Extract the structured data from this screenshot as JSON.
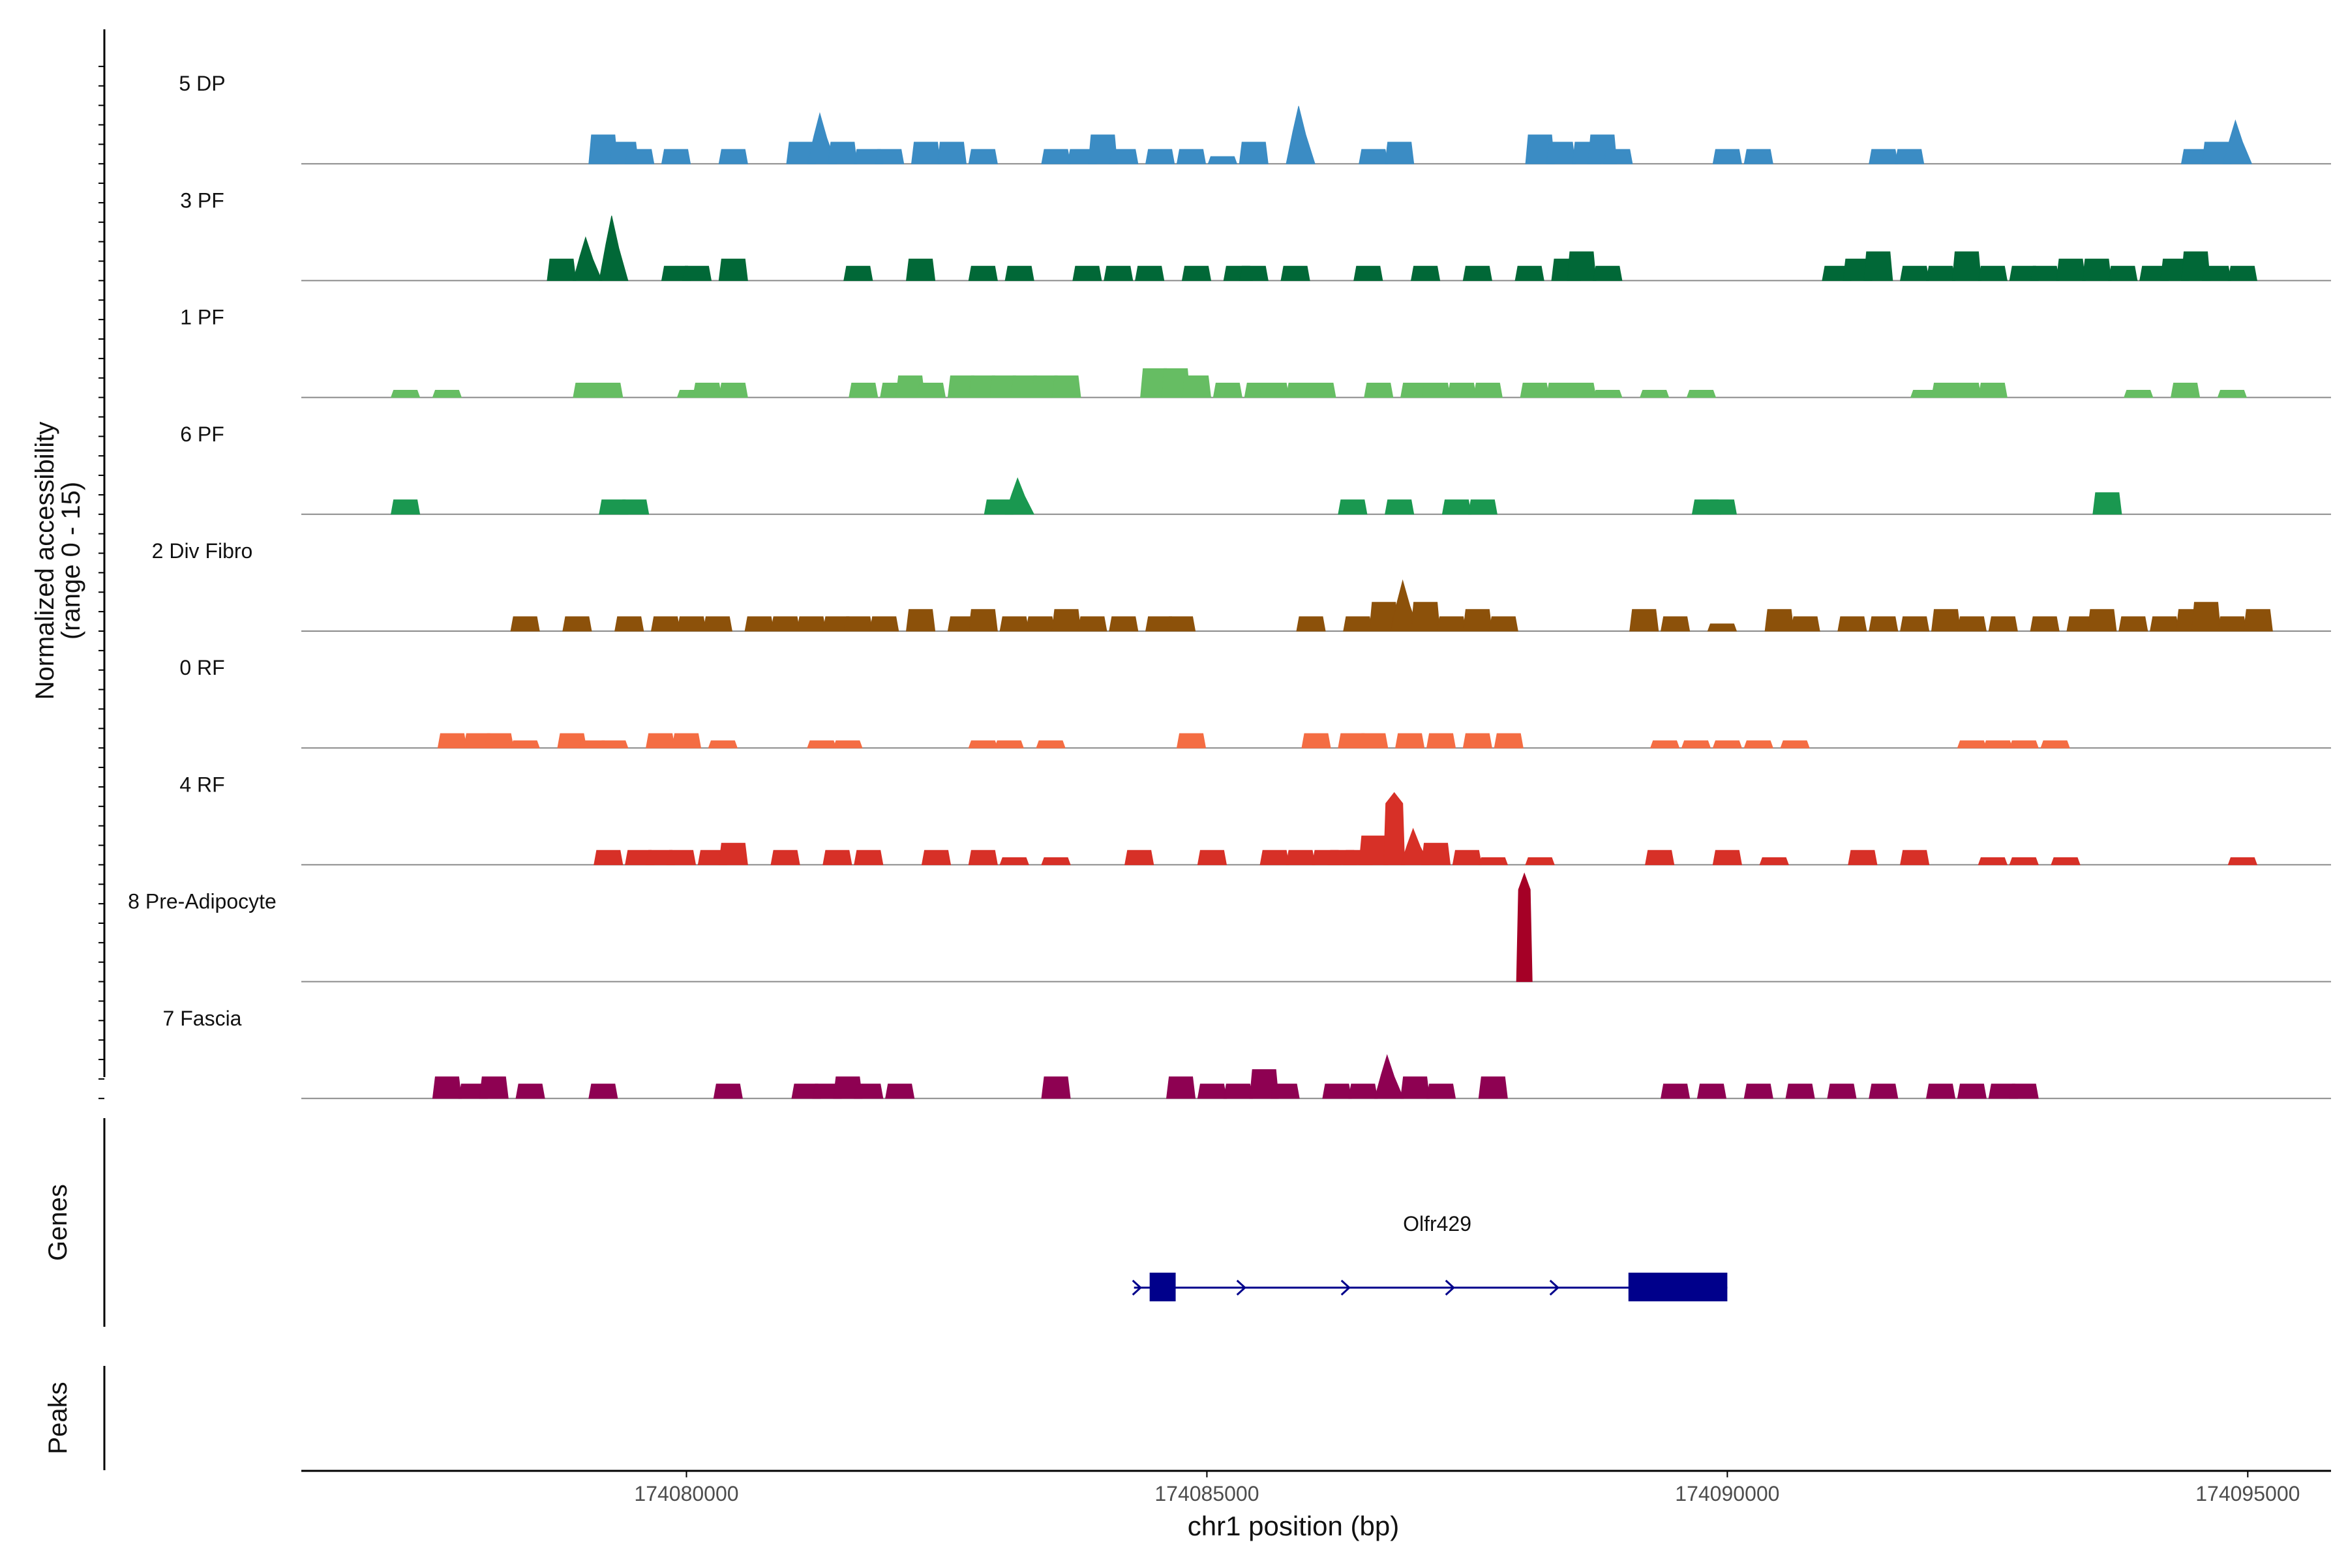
{
  "chart_data": {
    "type": "coverage",
    "title": "",
    "ylabel_lines": [
      "Normalized accessibility",
      "(range 0 - 15)"
    ],
    "ylim": [
      0,
      15
    ],
    "xlabel": "chr1 position (bp)",
    "xlim": [
      174076300,
      174095800
    ],
    "x_ticks": [
      174080000,
      174085000,
      174090000,
      174095000
    ],
    "x_tick_labels": [
      "174080000",
      "174085000",
      "174090000",
      "174095000"
    ],
    "tracks": [
      {
        "name": "5 DP",
        "color": "#3B8CC4",
        "peaks": [
          [
            174079200,
            4
          ],
          [
            174079400,
            3
          ],
          [
            174079550,
            2
          ],
          [
            174079900,
            2
          ],
          [
            174080450,
            2
          ],
          [
            174081100,
            3
          ],
          [
            174081300,
            7
          ],
          [
            174081500,
            3
          ],
          [
            174081750,
            2
          ],
          [
            174081950,
            2
          ],
          [
            174082300,
            3
          ],
          [
            174082550,
            3
          ],
          [
            174082850,
            2
          ],
          [
            174083550,
            2
          ],
          [
            174083800,
            2
          ],
          [
            174084000,
            4
          ],
          [
            174084200,
            2
          ],
          [
            174084550,
            2
          ],
          [
            174084850,
            2
          ],
          [
            174085150,
            1
          ],
          [
            174085450,
            3
          ],
          [
            174085900,
            8
          ],
          [
            174086600,
            2
          ],
          [
            174086850,
            3
          ],
          [
            174088200,
            4
          ],
          [
            174088400,
            3
          ],
          [
            174088650,
            3
          ],
          [
            174088800,
            4
          ],
          [
            174088950,
            2
          ],
          [
            174090000,
            2
          ],
          [
            174090300,
            2
          ],
          [
            174091500,
            2
          ],
          [
            174091750,
            2
          ],
          [
            174094500,
            2
          ],
          [
            174094700,
            3
          ],
          [
            174094900,
            6
          ]
        ]
      },
      {
        "name": "3 PF",
        "color": "#016837",
        "peaks": [
          [
            174078800,
            3
          ],
          [
            174079050,
            6
          ],
          [
            174079300,
            9
          ],
          [
            174079900,
            2
          ],
          [
            174080100,
            2
          ],
          [
            174080450,
            3
          ],
          [
            174081650,
            2
          ],
          [
            174082250,
            3
          ],
          [
            174082850,
            2
          ],
          [
            174083200,
            2
          ],
          [
            174083850,
            2
          ],
          [
            174084150,
            2
          ],
          [
            174084450,
            2
          ],
          [
            174084900,
            2
          ],
          [
            174085300,
            2
          ],
          [
            174085450,
            2
          ],
          [
            174085850,
            2
          ],
          [
            174086550,
            2
          ],
          [
            174087100,
            2
          ],
          [
            174087600,
            2
          ],
          [
            174088100,
            2
          ],
          [
            174088450,
            3
          ],
          [
            174088600,
            4
          ],
          [
            174088850,
            2
          ],
          [
            174091050,
            2
          ],
          [
            174091250,
            3
          ],
          [
            174091450,
            4
          ],
          [
            174091800,
            2
          ],
          [
            174092050,
            2
          ],
          [
            174092300,
            4
          ],
          [
            174092550,
            2
          ],
          [
            174092850,
            2
          ],
          [
            174093050,
            2
          ],
          [
            174093300,
            3
          ],
          [
            174093550,
            3
          ],
          [
            174093800,
            2
          ],
          [
            174094100,
            2
          ],
          [
            174094300,
            3
          ],
          [
            174094500,
            4
          ],
          [
            174094700,
            2
          ],
          [
            174094950,
            2
          ]
        ]
      },
      {
        "name": "1 PF",
        "color": "#66BD63",
        "peaks": [
          [
            174077300,
            1
          ],
          [
            174077700,
            1
          ],
          [
            174079050,
            2
          ],
          [
            174079250,
            2
          ],
          [
            174080050,
            1
          ],
          [
            174080200,
            2
          ],
          [
            174080450,
            2
          ],
          [
            174081700,
            2
          ],
          [
            174082000,
            2
          ],
          [
            174082150,
            3
          ],
          [
            174082350,
            2
          ],
          [
            174082650,
            3
          ],
          [
            174082850,
            3
          ],
          [
            174083050,
            3
          ],
          [
            174083250,
            3
          ],
          [
            174083450,
            3
          ],
          [
            174083650,
            3
          ],
          [
            174084500,
            4
          ],
          [
            174084700,
            4
          ],
          [
            174084900,
            3
          ],
          [
            174085200,
            2
          ],
          [
            174085500,
            2
          ],
          [
            174085650,
            2
          ],
          [
            174085900,
            2
          ],
          [
            174086100,
            2
          ],
          [
            174086650,
            2
          ],
          [
            174087000,
            2
          ],
          [
            174087200,
            2
          ],
          [
            174087450,
            2
          ],
          [
            174087700,
            2
          ],
          [
            174088150,
            2
          ],
          [
            174088400,
            2
          ],
          [
            174088600,
            2
          ],
          [
            174088850,
            1
          ],
          [
            174089300,
            1
          ],
          [
            174089750,
            1
          ],
          [
            174091900,
            1
          ],
          [
            174092100,
            2
          ],
          [
            174092300,
            2
          ],
          [
            174092550,
            2
          ],
          [
            174093950,
            1
          ],
          [
            174094400,
            2
          ],
          [
            174094850,
            1
          ]
        ]
      },
      {
        "name": "6 PF",
        "color": "#1A9850",
        "peaks": [
          [
            174077300,
            2
          ],
          [
            174079300,
            2
          ],
          [
            174079500,
            2
          ],
          [
            174083000,
            2
          ],
          [
            174083200,
            5
          ],
          [
            174086400,
            2
          ],
          [
            174086850,
            2
          ],
          [
            174087400,
            2
          ],
          [
            174087650,
            2
          ],
          [
            174089800,
            2
          ],
          [
            174089950,
            2
          ],
          [
            174093650,
            3
          ]
        ]
      },
      {
        "name": "2 Div Fibro",
        "color": "#8C510A",
        "peaks": [
          [
            174078450,
            2
          ],
          [
            174078950,
            2
          ],
          [
            174079450,
            2
          ],
          [
            174079800,
            2
          ],
          [
            174080050,
            2
          ],
          [
            174080300,
            2
          ],
          [
            174080700,
            2
          ],
          [
            174080950,
            2
          ],
          [
            174081200,
            2
          ],
          [
            174081450,
            2
          ],
          [
            174081650,
            2
          ],
          [
            174081900,
            2
          ],
          [
            174082250,
            3
          ],
          [
            174082650,
            2
          ],
          [
            174082850,
            3
          ],
          [
            174083150,
            2
          ],
          [
            174083400,
            2
          ],
          [
            174083650,
            3
          ],
          [
            174083900,
            2
          ],
          [
            174084200,
            2
          ],
          [
            174084550,
            2
          ],
          [
            174084750,
            2
          ],
          [
            174086000,
            2
          ],
          [
            174086450,
            2
          ],
          [
            174086700,
            4
          ],
          [
            174086900,
            7
          ],
          [
            174087100,
            4
          ],
          [
            174087350,
            2
          ],
          [
            174087600,
            3
          ],
          [
            174087850,
            2
          ],
          [
            174089200,
            3
          ],
          [
            174089500,
            2
          ],
          [
            174089950,
            1
          ],
          [
            174090500,
            3
          ],
          [
            174090750,
            2
          ],
          [
            174091200,
            2
          ],
          [
            174091500,
            2
          ],
          [
            174091800,
            2
          ],
          [
            174092100,
            3
          ],
          [
            174092350,
            2
          ],
          [
            174092650,
            2
          ],
          [
            174093050,
            2
          ],
          [
            174093400,
            2
          ],
          [
            174093600,
            3
          ],
          [
            174093900,
            2
          ],
          [
            174094200,
            2
          ],
          [
            174094450,
            3
          ],
          [
            174094600,
            4
          ],
          [
            174094850,
            2
          ],
          [
            174095100,
            3
          ]
        ]
      },
      {
        "name": "0 RF",
        "color": "#F46D43",
        "peaks": [
          [
            174077750,
            2
          ],
          [
            174078000,
            2
          ],
          [
            174078200,
            2
          ],
          [
            174078450,
            1
          ],
          [
            174078900,
            2
          ],
          [
            174079100,
            1
          ],
          [
            174079300,
            1
          ],
          [
            174079750,
            2
          ],
          [
            174080000,
            2
          ],
          [
            174080350,
            1
          ],
          [
            174081300,
            1
          ],
          [
            174081550,
            1
          ],
          [
            174082850,
            1
          ],
          [
            174083100,
            1
          ],
          [
            174083500,
            1
          ],
          [
            174084850,
            2
          ],
          [
            174086050,
            2
          ],
          [
            174086400,
            2
          ],
          [
            174086600,
            2
          ],
          [
            174086950,
            2
          ],
          [
            174087250,
            2
          ],
          [
            174087600,
            2
          ],
          [
            174087900,
            2
          ],
          [
            174089400,
            1
          ],
          [
            174089700,
            1
          ],
          [
            174090000,
            1
          ],
          [
            174090300,
            1
          ],
          [
            174090650,
            1
          ],
          [
            174092350,
            1
          ],
          [
            174092600,
            1
          ],
          [
            174092850,
            1
          ],
          [
            174093150,
            1
          ]
        ]
      },
      {
        "name": "4 RF",
        "color": "#D73027",
        "peaks": [
          [
            174079250,
            2
          ],
          [
            174079550,
            2
          ],
          [
            174079750,
            2
          ],
          [
            174079950,
            2
          ],
          [
            174080250,
            2
          ],
          [
            174080450,
            3
          ],
          [
            174080950,
            2
          ],
          [
            174081450,
            2
          ],
          [
            174081750,
            2
          ],
          [
            174082400,
            2
          ],
          [
            174082850,
            2
          ],
          [
            174083150,
            1
          ],
          [
            174083550,
            1
          ],
          [
            174084350,
            2
          ],
          [
            174085050,
            2
          ],
          [
            174085650,
            2
          ],
          [
            174085900,
            2
          ],
          [
            174086150,
            2
          ],
          [
            174086300,
            2
          ],
          [
            174086450,
            2
          ],
          [
            174086600,
            4
          ],
          [
            174086800,
            10
          ],
          [
            174087000,
            5
          ],
          [
            174087200,
            3
          ],
          [
            174087500,
            2
          ],
          [
            174087750,
            1
          ],
          [
            174088200,
            1
          ],
          [
            174089350,
            2
          ],
          [
            174090000,
            2
          ],
          [
            174090450,
            1
          ],
          [
            174091300,
            2
          ],
          [
            174091800,
            2
          ],
          [
            174092550,
            1
          ],
          [
            174092850,
            1
          ],
          [
            174093250,
            1
          ],
          [
            174094950,
            1
          ]
        ]
      },
      {
        "name": "8 Pre-Adipocyte",
        "color": "#A50026",
        "peaks": [
          [
            174088050,
            15
          ]
        ]
      },
      {
        "name": "7 Fascia",
        "color": "#8E0152",
        "peaks": [
          [
            174077700,
            3
          ],
          [
            174077950,
            2
          ],
          [
            174078150,
            3
          ],
          [
            174078500,
            2
          ],
          [
            174079200,
            2
          ],
          [
            174080400,
            2
          ],
          [
            174081150,
            2
          ],
          [
            174081350,
            2
          ],
          [
            174081550,
            3
          ],
          [
            174081750,
            2
          ],
          [
            174082050,
            2
          ],
          [
            174083550,
            3
          ],
          [
            174084750,
            3
          ],
          [
            174085050,
            2
          ],
          [
            174085300,
            2
          ],
          [
            174085550,
            4
          ],
          [
            174085750,
            2
          ],
          [
            174086250,
            2
          ],
          [
            174086500,
            2
          ],
          [
            174086750,
            6
          ],
          [
            174087000,
            3
          ],
          [
            174087250,
            2
          ],
          [
            174087750,
            3
          ],
          [
            174089500,
            2
          ],
          [
            174089850,
            2
          ],
          [
            174090300,
            2
          ],
          [
            174090700,
            2
          ],
          [
            174091100,
            2
          ],
          [
            174091500,
            2
          ],
          [
            174092050,
            2
          ],
          [
            174092350,
            2
          ],
          [
            174092650,
            2
          ],
          [
            174092850,
            2
          ]
        ]
      }
    ],
    "genes": {
      "label": "Genes",
      "items": [
        {
          "name": "Olfr429",
          "start": 174084300,
          "end": 174090000,
          "strand": "+",
          "exons": [
            [
              174084450,
              174084700
            ],
            [
              174089050,
              174090000
            ]
          ]
        }
      ]
    },
    "peaks_track": {
      "label": "Peaks",
      "items": []
    }
  }
}
